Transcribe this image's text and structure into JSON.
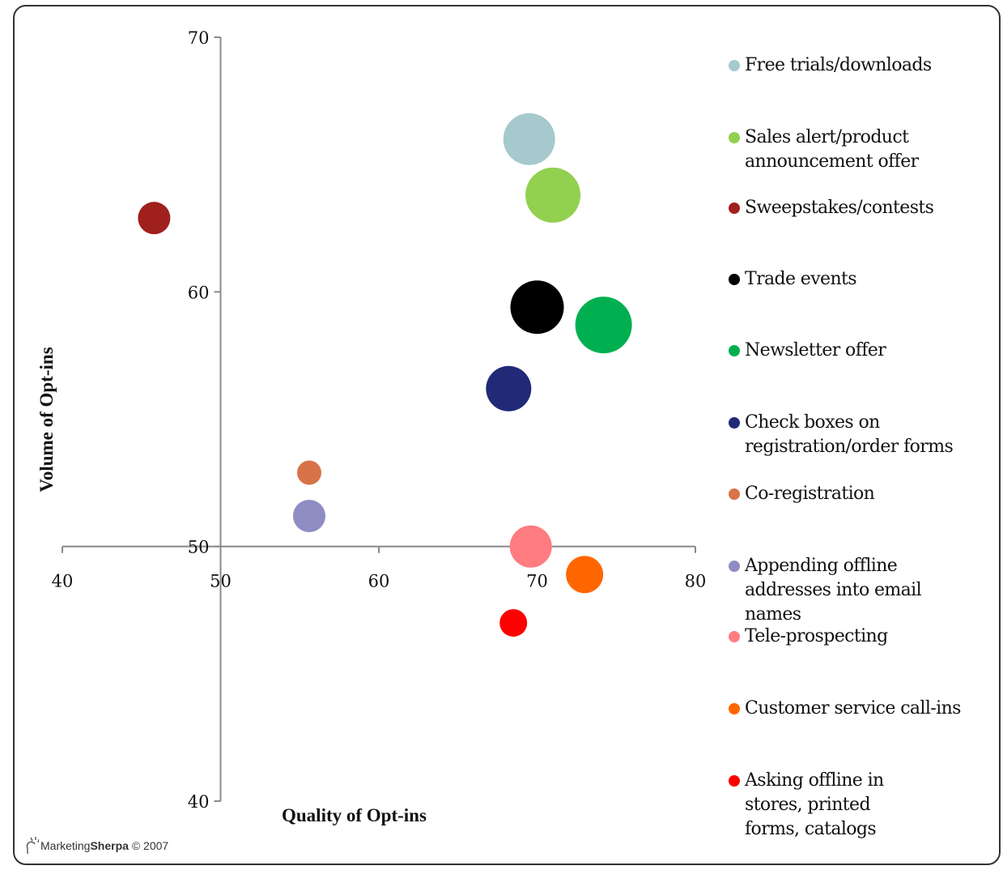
{
  "chart_data": {
    "type": "scatter",
    "variant": "bubble",
    "title": "",
    "xlabel": "Quality of Opt-ins",
    "ylabel": "Volume of Opt-ins",
    "xlim": [
      40,
      80
    ],
    "ylim": [
      40,
      70
    ],
    "x_ticks": [
      "40",
      "50",
      "60",
      "70",
      "80"
    ],
    "y_ticks": [
      "40",
      "50",
      "60",
      "70"
    ],
    "x_axis_crosses_y_at": 50,
    "y_axis_crosses_x_at": 50,
    "grid": false,
    "legend_position": "right",
    "series": [
      {
        "name": "Free trials/downloads",
        "x": 69.5,
        "y": 66.0,
        "size": 32,
        "color": "#a5c9cc"
      },
      {
        "name": "Sales alert/product\nannouncement offer",
        "x": 71.0,
        "y": 63.8,
        "size": 34,
        "color": "#92d050"
      },
      {
        "name": "Sweepstakes/contests",
        "x": 45.8,
        "y": 62.9,
        "size": 20,
        "color": "#a0201e"
      },
      {
        "name": "Trade events",
        "x": 70.0,
        "y": 59.4,
        "size": 33,
        "color": "#000000"
      },
      {
        "name": "Newsletter offer",
        "x": 74.2,
        "y": 58.7,
        "size": 35,
        "color": "#00b050"
      },
      {
        "name": "Check boxes on\nregistration/order forms",
        "x": 68.2,
        "y": 56.2,
        "size": 28,
        "color": "#222a78"
      },
      {
        "name": "Co-registration",
        "x": 55.6,
        "y": 52.9,
        "size": 15,
        "color": "#d87349"
      },
      {
        "name": "Appending offline\naddresses into email\nnames",
        "x": 55.6,
        "y": 51.2,
        "size": 20,
        "color": "#8e8cc2"
      },
      {
        "name": "Tele-prospecting",
        "x": 69.6,
        "y": 50.0,
        "size": 26,
        "color": "#ff7c80"
      },
      {
        "name": "Customer service call-ins",
        "x": 73.0,
        "y": 48.9,
        "size": 23,
        "color": "#ff6600"
      },
      {
        "name": "Asking offline in\nstores, printed\nforms, catalogs",
        "x": 68.5,
        "y": 47.0,
        "size": 17,
        "color": "#ff0000"
      }
    ]
  },
  "logo": {
    "brand_plain": "Marketing",
    "brand_bold": "Sherpa",
    "copyright": "© 2007"
  }
}
